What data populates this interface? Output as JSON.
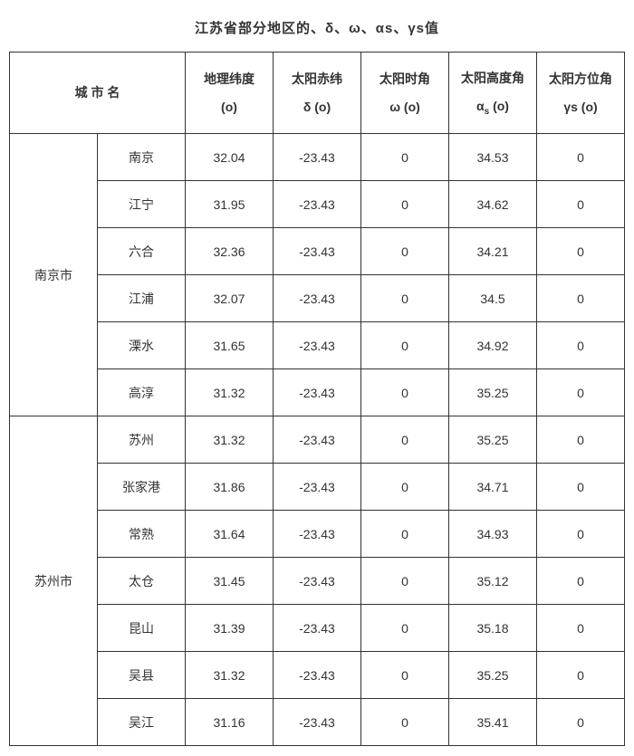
{
  "title": "江苏省部分地区的、δ、ω、αs、γs值",
  "headers": {
    "city": "城 市 名",
    "lat_line1": "地理纬度",
    "lat_line2": "(o)",
    "dec_line1": "太阳赤纬",
    "dec_line2": "δ (o)",
    "hour_line1": "太阳时角",
    "hour_line2": "ω (o)",
    "alt_line1": "太阳高度角",
    "alt_line2_pre": "α",
    "alt_line2_sub": "s",
    "alt_line2_post": " (o)",
    "azi_line1": "太阳方位角",
    "azi_line2": "γs (o)"
  },
  "groups": [
    {
      "name": "南京市",
      "rows": [
        {
          "city": "南京",
          "lat": "32.04",
          "dec": "-23.43",
          "hour": "0",
          "alt": "34.53",
          "azi": "0"
        },
        {
          "city": "江宁",
          "lat": "31.95",
          "dec": "-23.43",
          "hour": "0",
          "alt": "34.62",
          "azi": "0"
        },
        {
          "city": "六合",
          "lat": "32.36",
          "dec": "-23.43",
          "hour": "0",
          "alt": "34.21",
          "azi": "0"
        },
        {
          "city": "江浦",
          "lat": "32.07",
          "dec": "-23.43",
          "hour": "0",
          "alt": "34.5",
          "azi": "0"
        },
        {
          "city": "溧水",
          "lat": "31.65",
          "dec": "-23.43",
          "hour": "0",
          "alt": "34.92",
          "azi": "0"
        },
        {
          "city": "高淳",
          "lat": "31.32",
          "dec": "-23.43",
          "hour": "0",
          "alt": "35.25",
          "azi": "0"
        }
      ]
    },
    {
      "name": "苏州市",
      "rows": [
        {
          "city": "苏州",
          "lat": "31.32",
          "dec": "-23.43",
          "hour": "0",
          "alt": "35.25",
          "azi": "0"
        },
        {
          "city": "张家港",
          "lat": "31.86",
          "dec": "-23.43",
          "hour": "0",
          "alt": "34.71",
          "azi": "0"
        },
        {
          "city": "常熟",
          "lat": "31.64",
          "dec": "-23.43",
          "hour": "0",
          "alt": "34.93",
          "azi": "0"
        },
        {
          "city": "太仓",
          "lat": "31.45",
          "dec": "-23.43",
          "hour": "0",
          "alt": "35.12",
          "azi": "0"
        },
        {
          "city": "昆山",
          "lat": "31.39",
          "dec": "-23.43",
          "hour": "0",
          "alt": "35.18",
          "azi": "0"
        },
        {
          "city": "吴县",
          "lat": "31.32",
          "dec": "-23.43",
          "hour": "0",
          "alt": "35.25",
          "azi": "0"
        },
        {
          "city": "吴江",
          "lat": "31.16",
          "dec": "-23.43",
          "hour": "0",
          "alt": "35.41",
          "azi": "0"
        }
      ]
    }
  ]
}
